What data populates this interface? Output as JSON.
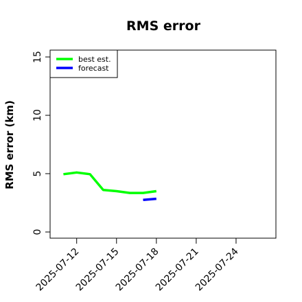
{
  "chart_data": {
    "type": "line",
    "title": "RMS error",
    "xlabel": "",
    "ylabel": "RMS error (km)",
    "ylim": [
      0,
      15
    ],
    "yticks": [
      0,
      5,
      10,
      15
    ],
    "xlim": [
      "2025-07-10",
      "2025-07-27"
    ],
    "xticks": [
      "2025-07-12",
      "2025-07-15",
      "2025-07-18",
      "2025-07-21",
      "2025-07-24"
    ],
    "grid": false,
    "legend_position": "top-left",
    "series": [
      {
        "name": "best est.",
        "color": "#00ff00",
        "x": [
          "2025-07-11",
          "2025-07-12",
          "2025-07-13",
          "2025-07-14",
          "2025-07-15",
          "2025-07-16",
          "2025-07-17",
          "2025-07-18"
        ],
        "y": [
          4.95,
          5.1,
          4.95,
          3.6,
          3.5,
          3.35,
          3.35,
          3.5
        ]
      },
      {
        "name": "forecast",
        "color": "#0000ff",
        "x": [
          "2025-07-17",
          "2025-07-18"
        ],
        "y": [
          2.75,
          2.85
        ]
      }
    ]
  }
}
